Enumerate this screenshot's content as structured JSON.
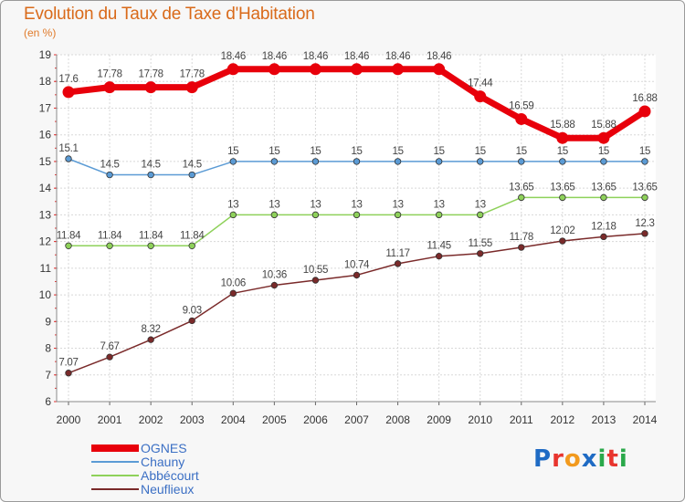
{
  "title": "Evolution du Taux de Taxe d'Habitation",
  "subtitle": "(en %)",
  "logo": {
    "text": "Proxiti",
    "colors": [
      "#1f6bc4",
      "#e8352e",
      "#f29a1e",
      "#1f6bc4",
      "#2aa84a",
      "#e8352e",
      "#2aa84a"
    ]
  },
  "chart_data": {
    "type": "line",
    "title": "Evolution du Taux de Taxe d'Habitation",
    "subtitle": "(en %)",
    "xlabel": "",
    "ylabel": "(en %)",
    "x": [
      "2000",
      "2001",
      "2002",
      "2003",
      "2004",
      "2005",
      "2006",
      "2007",
      "2008",
      "2009",
      "2010",
      "2011",
      "2012",
      "2013",
      "2014"
    ],
    "ylim": [
      6,
      19
    ],
    "yticks": [
      "6",
      "7",
      "8",
      "9",
      "10",
      "11",
      "12",
      "13",
      "14",
      "15",
      "16",
      "17",
      "18",
      "19"
    ],
    "grid": true,
    "legend_position": "bottom-left",
    "series": [
      {
        "name": "OGNES",
        "color": "#e8000b",
        "emphasis": "thick",
        "values": [
          17.6,
          17.78,
          17.78,
          17.78,
          18.46,
          18.46,
          18.46,
          18.46,
          18.46,
          18.46,
          17.44,
          16.59,
          15.88,
          15.88,
          16.88
        ],
        "labels": [
          "17.6",
          "17.78",
          "17.78",
          "17.78",
          "18.46",
          "18.46",
          "18.46",
          "18.46",
          "18.46",
          "18.46",
          "17.44",
          "16.59",
          "15.88",
          "15.88",
          "16.88"
        ]
      },
      {
        "name": "Chauny",
        "color": "#5b9bd5",
        "emphasis": "thin",
        "values": [
          15.1,
          14.5,
          14.5,
          14.5,
          15,
          15,
          15,
          15,
          15,
          15,
          15,
          15,
          15,
          15,
          15
        ],
        "labels": [
          "15.1",
          "14.5",
          "14.5",
          "14.5",
          "15",
          "15",
          "15",
          "15",
          "15",
          "15",
          "15",
          "15",
          "15",
          "15",
          "15"
        ]
      },
      {
        "name": "Abbécourt",
        "color": "#8ed15a",
        "emphasis": "thin",
        "values": [
          11.84,
          11.84,
          11.84,
          11.84,
          13,
          13,
          13,
          13,
          13,
          13,
          13,
          13.65,
          13.65,
          13.65,
          13.65
        ],
        "labels": [
          "11.84",
          "11.84",
          "11.84",
          "11.84",
          "13",
          "13",
          "13",
          "13",
          "13",
          "13",
          "13",
          "13.65",
          "13.65",
          "13.65",
          "13.65"
        ]
      },
      {
        "name": "Neuflieux",
        "color": "#7a2a2a",
        "emphasis": "thin",
        "values": [
          7.07,
          7.67,
          8.32,
          9.03,
          10.06,
          10.36,
          10.55,
          10.74,
          11.17,
          11.45,
          11.55,
          11.78,
          12.02,
          12.18,
          12.3
        ],
        "labels": [
          "7.07",
          "7.67",
          "8.32",
          "9.03",
          "10.06",
          "10.36",
          "10.55",
          "10.74",
          "11.17",
          "11.45",
          "11.55",
          "11.78",
          "12.02",
          "12.18",
          "12.3"
        ]
      }
    ]
  }
}
